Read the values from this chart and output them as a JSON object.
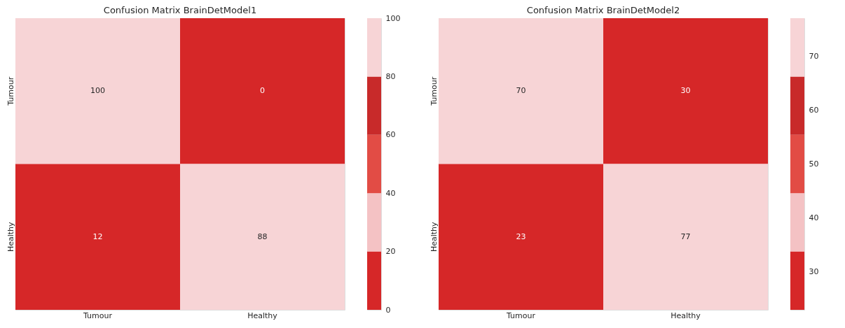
{
  "chart_data": [
    {
      "type": "heatmap",
      "title": "Confusion Matrix BrainDetModel1",
      "categories": [
        "Tumour",
        "Healthy"
      ],
      "y_categories": [
        "Tumour",
        "Healthy"
      ],
      "cells": [
        [
          100,
          0
        ],
        [
          12,
          88
        ]
      ],
      "clim": [
        0,
        100
      ],
      "cticks": [
        0,
        20,
        40,
        60,
        80,
        100
      ],
      "colors": [
        "#d62728",
        "#f4c2c4",
        "#e24c45",
        "#c82a2a",
        "#f7d4d6"
      ],
      "data_labels": true
    },
    {
      "type": "heatmap",
      "title": "Confusion Matrix BrainDetModel2",
      "categories": [
        "Tumour",
        "Healthy"
      ],
      "y_categories": [
        "Tumour",
        "Healthy"
      ],
      "cells": [
        [
          70,
          30
        ],
        [
          23,
          77
        ]
      ],
      "clim": [
        23,
        77
      ],
      "cticks": [
        30,
        40,
        50,
        60,
        70
      ],
      "colors": [
        "#d62728",
        "#f4c2c4",
        "#e24c45",
        "#c82a2a",
        "#f7d4d6"
      ],
      "data_labels": true
    }
  ]
}
